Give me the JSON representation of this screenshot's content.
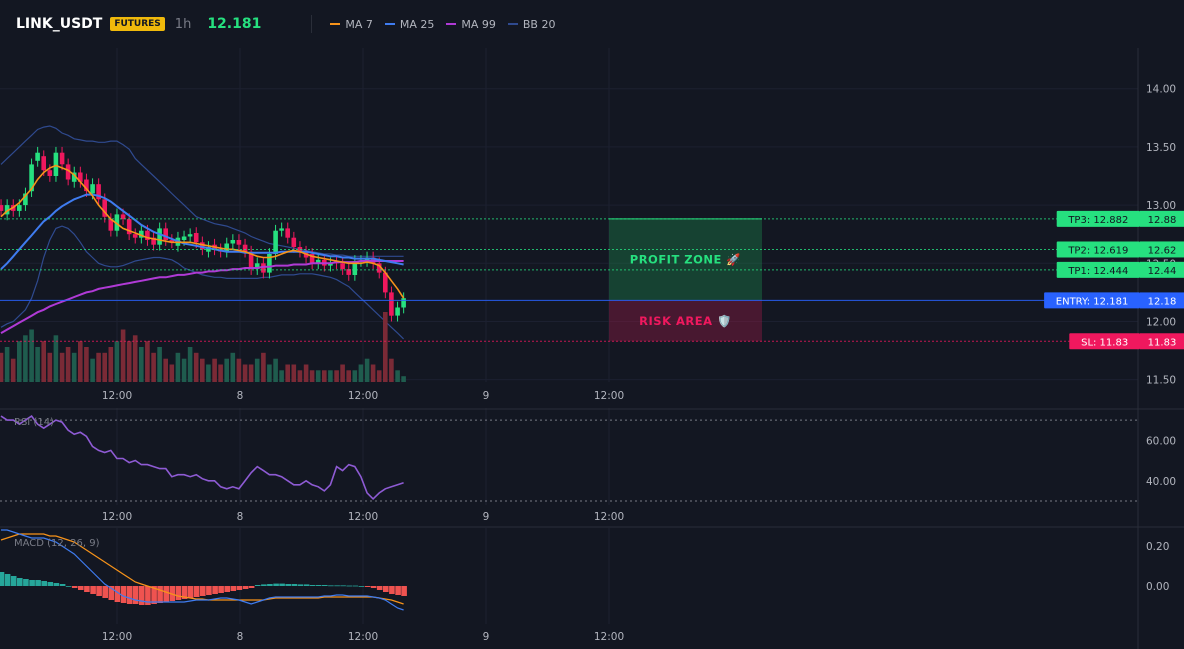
{
  "header": {
    "symbol": "LINK_USDT",
    "badge": "FUTURES",
    "timeframe": "1h",
    "last_price": "12.181",
    "legend": [
      {
        "label": "MA 7",
        "color": "#f7931a"
      },
      {
        "label": "MA 25",
        "color": "#3f7cf0"
      },
      {
        "label": "MA 99",
        "color": "#b03ad6"
      },
      {
        "label": "BB 20",
        "color": "#2f4a8f"
      }
    ]
  },
  "chart_data": [
    {
      "type": "candlestick",
      "title": "LINK_USDT",
      "y_ticks": [
        "14.00",
        "13.50",
        "13.00",
        "12.50",
        "12.00",
        "11.50"
      ],
      "ylim": [
        11.48,
        14.35
      ],
      "x_ticks": [
        "12:00",
        "8",
        "12:00",
        "9",
        "12:00"
      ],
      "grid": true,
      "close": [
        12.95,
        13.0,
        12.95,
        13.0,
        13.1,
        13.35,
        13.45,
        13.3,
        13.25,
        13.45,
        13.35,
        13.22,
        13.28,
        13.2,
        13.12,
        13.18,
        13.05,
        12.9,
        12.78,
        12.92,
        12.88,
        12.75,
        12.72,
        12.78,
        12.7,
        12.66,
        12.8,
        12.7,
        12.68,
        12.72,
        12.73,
        12.75,
        12.68,
        12.62,
        12.64,
        12.62,
        12.6,
        12.67,
        12.7,
        12.66,
        12.6,
        12.45,
        12.5,
        12.42,
        12.58,
        12.78,
        12.8,
        12.72,
        12.64,
        12.6,
        12.55,
        12.5,
        12.53,
        12.48,
        12.5,
        12.5,
        12.45,
        12.4,
        12.52,
        12.52,
        12.55,
        12.5,
        12.42,
        12.25,
        12.05,
        12.12,
        12.2
      ],
      "open": [
        13.0,
        12.92,
        13.0,
        12.95,
        13.0,
        13.12,
        13.38,
        13.42,
        13.3,
        13.25,
        13.45,
        13.35,
        13.2,
        13.28,
        13.22,
        13.1,
        13.18,
        13.05,
        12.88,
        12.78,
        12.92,
        12.88,
        12.75,
        12.72,
        12.78,
        12.72,
        12.66,
        12.8,
        12.7,
        12.65,
        12.7,
        12.73,
        12.76,
        12.68,
        12.6,
        12.66,
        12.62,
        12.6,
        12.67,
        12.7,
        12.66,
        12.6,
        12.45,
        12.5,
        12.42,
        12.58,
        12.78,
        12.8,
        12.72,
        12.64,
        12.6,
        12.58,
        12.5,
        12.53,
        12.48,
        12.52,
        12.5,
        12.45,
        12.4,
        12.52,
        12.52,
        12.55,
        12.5,
        12.42,
        12.25,
        12.05,
        12.12
      ],
      "ma7": [
        12.9,
        12.95,
        12.98,
        13.02,
        13.08,
        13.14,
        13.22,
        13.28,
        13.32,
        13.34,
        13.32,
        13.3,
        13.26,
        13.2,
        13.14,
        13.08,
        13.0,
        12.94,
        12.88,
        12.84,
        12.8,
        12.78,
        12.76,
        12.74,
        12.72,
        12.71,
        12.7,
        12.69,
        12.68,
        12.68,
        12.68,
        12.68,
        12.67,
        12.66,
        12.65,
        12.64,
        12.63,
        12.62,
        12.62,
        12.61,
        12.6,
        12.58,
        12.56,
        12.55,
        12.55,
        12.56,
        12.58,
        12.6,
        12.61,
        12.6,
        12.58,
        12.56,
        12.55,
        12.54,
        12.53,
        12.52,
        12.51,
        12.5,
        12.5,
        12.5,
        12.51,
        12.5,
        12.48,
        12.42,
        12.35,
        12.28,
        12.2
      ],
      "ma25": [
        12.45,
        12.5,
        12.56,
        12.62,
        12.68,
        12.74,
        12.8,
        12.86,
        12.9,
        12.95,
        12.99,
        13.02,
        13.05,
        13.07,
        13.09,
        13.09,
        13.08,
        13.06,
        13.03,
        12.99,
        12.95,
        12.91,
        12.87,
        12.83,
        12.8,
        12.77,
        12.75,
        12.73,
        12.71,
        12.69,
        12.67,
        12.66,
        12.65,
        12.64,
        12.63,
        12.62,
        12.61,
        12.6,
        12.6,
        12.6,
        12.59,
        12.59,
        12.59,
        12.59,
        12.59,
        12.59,
        12.6,
        12.6,
        12.6,
        12.6,
        12.6,
        12.59,
        12.58,
        12.57,
        12.56,
        12.56,
        12.55,
        12.55,
        12.54,
        12.54,
        12.54,
        12.54,
        12.53,
        12.52,
        12.51,
        12.5,
        12.49
      ],
      "ma99": [
        11.9,
        11.93,
        11.96,
        11.99,
        12.02,
        12.05,
        12.08,
        12.1,
        12.13,
        12.15,
        12.17,
        12.19,
        12.21,
        12.23,
        12.25,
        12.26,
        12.28,
        12.29,
        12.3,
        12.31,
        12.32,
        12.33,
        12.34,
        12.35,
        12.36,
        12.37,
        12.38,
        12.38,
        12.39,
        12.4,
        12.4,
        12.41,
        12.42,
        12.42,
        12.43,
        12.43,
        12.44,
        12.44,
        12.45,
        12.45,
        12.46,
        12.46,
        12.46,
        12.47,
        12.47,
        12.48,
        12.48,
        12.48,
        12.49,
        12.49,
        12.49,
        12.5,
        12.5,
        12.5,
        12.5,
        12.51,
        12.51,
        12.51,
        12.51,
        12.52,
        12.52,
        12.52,
        12.52,
        12.52,
        12.52,
        12.52,
        12.52
      ],
      "bb_upper": [
        13.35,
        13.4,
        13.45,
        13.5,
        13.55,
        13.6,
        13.65,
        13.67,
        13.68,
        13.66,
        13.62,
        13.6,
        13.57,
        13.56,
        13.55,
        13.55,
        13.54,
        13.54,
        13.55,
        13.55,
        13.52,
        13.48,
        13.4,
        13.35,
        13.3,
        13.25,
        13.2,
        13.15,
        13.1,
        13.05,
        13.0,
        12.95,
        12.9,
        12.88,
        12.86,
        12.84,
        12.83,
        12.82,
        12.8,
        12.78,
        12.76,
        12.73,
        12.71,
        12.69,
        12.67,
        12.66,
        12.65,
        12.64,
        12.63,
        12.62,
        12.61,
        12.6,
        12.59,
        12.58,
        12.58,
        12.57,
        12.57,
        12.56,
        12.56,
        12.56,
        12.56,
        12.56,
        12.56,
        12.56,
        12.56,
        12.56,
        12.56
      ],
      "bb_lower": [
        11.95,
        11.98,
        12.0,
        12.05,
        12.1,
        12.2,
        12.35,
        12.55,
        12.7,
        12.8,
        12.82,
        12.8,
        12.75,
        12.68,
        12.6,
        12.55,
        12.5,
        12.48,
        12.47,
        12.47,
        12.48,
        12.5,
        12.52,
        12.53,
        12.54,
        12.55,
        12.55,
        12.54,
        12.53,
        12.5,
        12.46,
        12.44,
        12.42,
        12.4,
        12.39,
        12.38,
        12.38,
        12.37,
        12.37,
        12.37,
        12.37,
        12.37,
        12.37,
        12.38,
        12.38,
        12.39,
        12.4,
        12.4,
        12.4,
        12.41,
        12.41,
        12.41,
        12.4,
        12.39,
        12.38,
        12.36,
        12.33,
        12.3,
        12.25,
        12.2,
        12.15,
        12.1,
        12.05,
        12.0,
        11.95,
        11.9,
        11.85
      ],
      "volume": [
        5,
        6,
        4,
        7,
        8,
        9,
        6,
        7,
        5,
        8,
        5,
        6,
        5,
        7,
        6,
        4,
        5,
        5,
        6,
        7,
        9,
        7,
        8,
        6,
        7,
        5,
        6,
        4,
        3,
        5,
        4,
        6,
        5,
        4,
        3,
        4,
        3,
        4,
        5,
        4,
        3,
        3,
        4,
        5,
        3,
        4,
        2,
        3,
        3,
        2,
        3,
        2,
        2,
        2,
        2,
        2,
        3,
        2,
        2,
        3,
        4,
        3,
        2,
        12,
        4,
        2,
        1
      ],
      "trade_levels": [
        {
          "label": "TP3: 12.882",
          "axis": "12.88",
          "value": 12.882,
          "color": "#26e07f"
        },
        {
          "label": "TP2: 12.619",
          "axis": "12.62",
          "value": 12.619,
          "color": "#26e07f"
        },
        {
          "label": "TP1: 12.444",
          "axis": "12.44",
          "value": 12.444,
          "color": "#26e07f"
        },
        {
          "label": "ENTRY: 12.181",
          "axis": "12.18",
          "value": 12.181,
          "color": "#2962ff"
        },
        {
          "label": "SL: 11.83",
          "axis": "11.83",
          "value": 11.83,
          "color": "#f0185e"
        }
      ],
      "zones": [
        {
          "label": "PROFIT ZONE 🚀",
          "from": 12.181,
          "to": 12.882
        },
        {
          "label": "RISK AREA 🛡️",
          "from": 11.83,
          "to": 12.181
        }
      ]
    },
    {
      "type": "line",
      "title": "RSI (14)",
      "y_ticks": [
        "60.00",
        "40.00"
      ],
      "ylim": [
        28,
        76
      ],
      "x_ticks": [
        "12:00",
        "8",
        "12:00",
        "9",
        "12:00"
      ],
      "series": [
        {
          "values": [
            72,
            70,
            70,
            68,
            70,
            72,
            68,
            66,
            68,
            70,
            69,
            65,
            63,
            64,
            62,
            57,
            55,
            54,
            55,
            51,
            51,
            49,
            50,
            48,
            48,
            47,
            46,
            46,
            42,
            43,
            43,
            42,
            43,
            41,
            40,
            40,
            37,
            36,
            37,
            36,
            40,
            44,
            47,
            45,
            43,
            43,
            42,
            40,
            38,
            38,
            40,
            38,
            37,
            35,
            38,
            47,
            45,
            48,
            47,
            42,
            34,
            31,
            34,
            36,
            37,
            38,
            39
          ]
        }
      ]
    },
    {
      "type": "bar",
      "title": "MACD (12, 26, 9)",
      "y_ticks": [
        "0.20",
        "0.00"
      ],
      "ylim": [
        -0.19,
        0.29
      ],
      "x_ticks": [
        "12:00",
        "8",
        "12:00",
        "9",
        "12:00"
      ],
      "histogram": [
        0.07,
        0.06,
        0.05,
        0.04,
        0.035,
        0.03,
        0.03,
        0.025,
        0.02,
        0.015,
        0.01,
        0.0,
        -0.01,
        -0.02,
        -0.03,
        -0.04,
        -0.05,
        -0.06,
        -0.07,
        -0.08,
        -0.085,
        -0.09,
        -0.09,
        -0.095,
        -0.095,
        -0.09,
        -0.085,
        -0.08,
        -0.075,
        -0.07,
        -0.065,
        -0.06,
        -0.055,
        -0.05,
        -0.045,
        -0.04,
        -0.035,
        -0.03,
        -0.025,
        -0.02,
        -0.015,
        -0.01,
        0.005,
        0.008,
        0.01,
        0.012,
        0.012,
        0.01,
        0.01,
        0.008,
        0.008,
        0.005,
        0.005,
        0.005,
        0.003,
        0.003,
        0.003,
        0.002,
        0.002,
        0.0,
        -0.005,
        -0.01,
        -0.02,
        -0.03,
        -0.04,
        -0.045,
        -0.05
      ],
      "macd": [
        0.28,
        0.28,
        0.27,
        0.26,
        0.25,
        0.24,
        0.24,
        0.24,
        0.23,
        0.22,
        0.2,
        0.18,
        0.16,
        0.13,
        0.1,
        0.07,
        0.04,
        0.01,
        -0.01,
        -0.03,
        -0.05,
        -0.06,
        -0.07,
        -0.075,
        -0.08,
        -0.08,
        -0.08,
        -0.08,
        -0.08,
        -0.08,
        -0.08,
        -0.075,
        -0.07,
        -0.07,
        -0.07,
        -0.065,
        -0.06,
        -0.06,
        -0.065,
        -0.07,
        -0.08,
        -0.09,
        -0.08,
        -0.07,
        -0.06,
        -0.055,
        -0.055,
        -0.055,
        -0.055,
        -0.055,
        -0.055,
        -0.055,
        -0.055,
        -0.05,
        -0.05,
        -0.045,
        -0.045,
        -0.05,
        -0.05,
        -0.05,
        -0.05,
        -0.055,
        -0.06,
        -0.07,
        -0.09,
        -0.11,
        -0.12
      ],
      "signal": [
        0.23,
        0.24,
        0.25,
        0.26,
        0.26,
        0.26,
        0.26,
        0.26,
        0.25,
        0.25,
        0.24,
        0.23,
        0.22,
        0.2,
        0.18,
        0.16,
        0.14,
        0.12,
        0.1,
        0.08,
        0.06,
        0.04,
        0.02,
        0.01,
        0.0,
        -0.01,
        -0.02,
        -0.03,
        -0.04,
        -0.05,
        -0.055,
        -0.06,
        -0.065,
        -0.065,
        -0.07,
        -0.07,
        -0.07,
        -0.07,
        -0.07,
        -0.07,
        -0.07,
        -0.07,
        -0.07,
        -0.07,
        -0.065,
        -0.06,
        -0.06,
        -0.06,
        -0.06,
        -0.06,
        -0.06,
        -0.06,
        -0.06,
        -0.055,
        -0.055,
        -0.055,
        -0.055,
        -0.055,
        -0.055,
        -0.055,
        -0.055,
        -0.055,
        -0.06,
        -0.065,
        -0.07,
        -0.08,
        -0.09
      ]
    }
  ]
}
